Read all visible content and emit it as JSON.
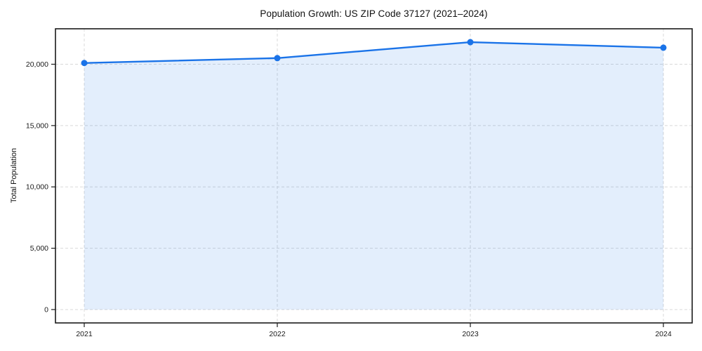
{
  "chart_data": {
    "type": "area",
    "title": "Population Growth: US ZIP Code 37127 (2021–2024)",
    "xlabel": "",
    "ylabel": "Total Population",
    "categories": [
      "2021",
      "2022",
      "2023",
      "2024"
    ],
    "series": [
      {
        "name": "Total Population",
        "values": [
          20100,
          20500,
          21800,
          21350
        ]
      }
    ],
    "ylim": [
      -1090,
      22890
    ],
    "yticks": [
      0,
      5000,
      10000,
      15000,
      20000
    ],
    "ytick_labels": [
      "0",
      "5,000",
      "10,000",
      "15,000",
      "20,000"
    ],
    "grid": true,
    "grid_style": "dashed",
    "legend": "none",
    "line_color": "#1a73e8",
    "fill_color": "#1a73e8",
    "fill_opacity": 0.12,
    "marker": "circle",
    "grid_color": "#d9d9d9",
    "axis_color": "#1a1a1a",
    "text_color": "#1a1a1a",
    "background": "#ffffff"
  }
}
